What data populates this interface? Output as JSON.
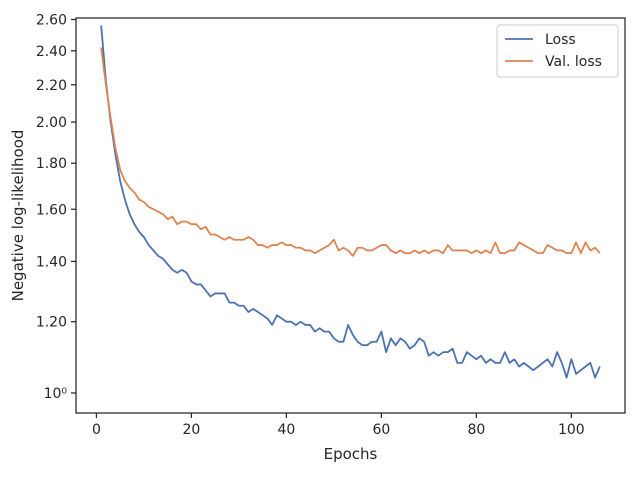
{
  "chart_data": {
    "type": "line",
    "title": "",
    "xlabel": "Epochs",
    "ylabel": "Negative log-likelihood",
    "xlim": [
      -4.3,
      111.3
    ],
    "ylim": [
      0.95,
      2.61
    ],
    "y_scale": "log",
    "grid": false,
    "legend_position": "top-right",
    "x_ticks": [
      0,
      20,
      40,
      60,
      80,
      100
    ],
    "x_tick_labels": [
      "0",
      "20",
      "40",
      "60",
      "80",
      "100"
    ],
    "y_ticks": [
      1.0,
      1.2,
      1.4,
      1.6,
      1.8,
      2.0,
      2.2,
      2.4,
      2.6
    ],
    "y_tick_labels": [
      "10⁰",
      "1.20",
      "1.40",
      "1.60",
      "1.80",
      "2.00",
      "2.20",
      "2.40",
      "2.60"
    ],
    "x": [
      1,
      2,
      3,
      4,
      5,
      6,
      7,
      8,
      9,
      10,
      11,
      12,
      13,
      14,
      15,
      16,
      17,
      18,
      19,
      20,
      21,
      22,
      23,
      24,
      25,
      26,
      27,
      28,
      29,
      30,
      31,
      32,
      33,
      34,
      35,
      36,
      37,
      38,
      39,
      40,
      41,
      42,
      43,
      44,
      45,
      46,
      47,
      48,
      49,
      50,
      51,
      52,
      53,
      54,
      55,
      56,
      57,
      58,
      59,
      60,
      61,
      62,
      63,
      64,
      65,
      66,
      67,
      68,
      69,
      70,
      71,
      72,
      73,
      74,
      75,
      76,
      77,
      78,
      79,
      80,
      81,
      82,
      83,
      84,
      85,
      86,
      87,
      88,
      89,
      90,
      91,
      92,
      93,
      94,
      95,
      96,
      97,
      98,
      99,
      100,
      101,
      102,
      103,
      104,
      105,
      106
    ],
    "series": [
      {
        "name": "Loss",
        "color": "#4c72b0",
        "values": [
          2.56,
          2.22,
          2.0,
          1.84,
          1.72,
          1.64,
          1.58,
          1.54,
          1.51,
          1.49,
          1.46,
          1.44,
          1.42,
          1.41,
          1.39,
          1.37,
          1.36,
          1.37,
          1.36,
          1.33,
          1.32,
          1.32,
          1.3,
          1.28,
          1.29,
          1.29,
          1.29,
          1.26,
          1.26,
          1.25,
          1.25,
          1.23,
          1.24,
          1.23,
          1.22,
          1.21,
          1.19,
          1.22,
          1.21,
          1.2,
          1.2,
          1.19,
          1.2,
          1.19,
          1.19,
          1.17,
          1.18,
          1.17,
          1.17,
          1.15,
          1.14,
          1.14,
          1.19,
          1.16,
          1.14,
          1.13,
          1.13,
          1.14,
          1.14,
          1.17,
          1.11,
          1.15,
          1.13,
          1.15,
          1.14,
          1.12,
          1.13,
          1.15,
          1.14,
          1.1,
          1.11,
          1.1,
          1.11,
          1.11,
          1.12,
          1.08,
          1.08,
          1.11,
          1.1,
          1.09,
          1.1,
          1.08,
          1.09,
          1.08,
          1.08,
          1.11,
          1.08,
          1.09,
          1.07,
          1.08,
          1.07,
          1.06,
          1.07,
          1.08,
          1.09,
          1.07,
          1.11,
          1.08,
          1.04,
          1.09,
          1.05,
          1.06,
          1.07,
          1.08,
          1.04,
          1.07
        ]
      },
      {
        "name": "Val. loss",
        "color": "#dd8452",
        "values": [
          2.42,
          2.2,
          2.02,
          1.87,
          1.77,
          1.72,
          1.69,
          1.67,
          1.64,
          1.63,
          1.61,
          1.6,
          1.59,
          1.58,
          1.56,
          1.57,
          1.54,
          1.55,
          1.55,
          1.54,
          1.54,
          1.52,
          1.53,
          1.5,
          1.5,
          1.49,
          1.48,
          1.49,
          1.48,
          1.48,
          1.48,
          1.49,
          1.48,
          1.46,
          1.46,
          1.45,
          1.46,
          1.46,
          1.47,
          1.46,
          1.46,
          1.45,
          1.45,
          1.44,
          1.44,
          1.43,
          1.44,
          1.45,
          1.46,
          1.48,
          1.44,
          1.45,
          1.44,
          1.42,
          1.45,
          1.45,
          1.44,
          1.44,
          1.45,
          1.46,
          1.46,
          1.44,
          1.43,
          1.44,
          1.43,
          1.43,
          1.44,
          1.43,
          1.44,
          1.43,
          1.44,
          1.44,
          1.43,
          1.46,
          1.44,
          1.44,
          1.44,
          1.44,
          1.43,
          1.44,
          1.43,
          1.44,
          1.43,
          1.47,
          1.43,
          1.43,
          1.44,
          1.44,
          1.47,
          1.46,
          1.45,
          1.44,
          1.43,
          1.43,
          1.46,
          1.45,
          1.44,
          1.44,
          1.43,
          1.43,
          1.47,
          1.43,
          1.47,
          1.44,
          1.45,
          1.43
        ]
      }
    ]
  }
}
